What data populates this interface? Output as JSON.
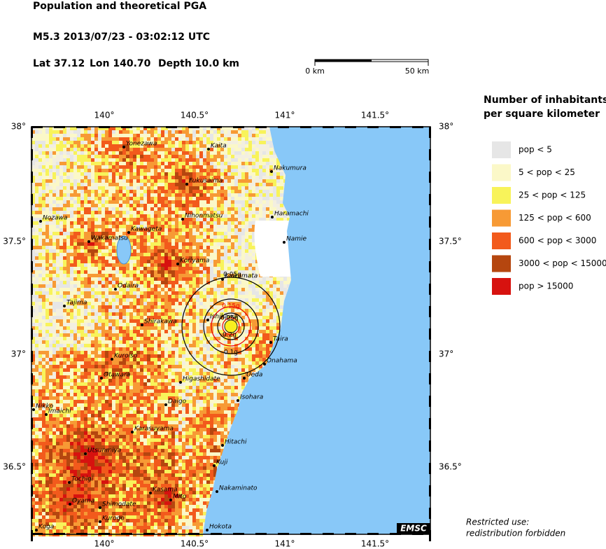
{
  "header": {
    "title": "Population and theoretical PGA",
    "event": "M5.3  2013/07/23 - 03:02:12 UTC",
    "lat": "Lat 37.12",
    "lon": "Lon 140.70",
    "depth": "Depth  10.0 km"
  },
  "scale_bar": {
    "start": "0 km",
    "end": "50 km"
  },
  "map": {
    "lon_ticks": [
      "140°",
      "140.5°",
      "141°",
      "141.5°"
    ],
    "lat_ticks": [
      "38°",
      "37.5°",
      "37°",
      "36.5°"
    ],
    "cities": [
      "Yonezawa",
      "Kaita",
      "Nakumura",
      "Fukusaima",
      "Nozawa",
      "Haramachi",
      "Nihonmatsu",
      "Kawageta",
      "Wakamatsu",
      "Namie",
      "Koriyama",
      "Kawamata",
      "Odaira",
      "Tajima",
      "Ishikawa",
      "Shirakawa",
      "Taira",
      "Onahama",
      "Kuroiso",
      "Ueda",
      "Otawara",
      "Higashidate",
      "Isohara",
      "Daigo",
      "Nikko",
      "Imaichi",
      "Karasuyama",
      "Hitachi",
      "Utsunmiya",
      "Kuji",
      "Tochigi",
      "Nakaminato",
      "Kasama",
      "Mito",
      "Oyama",
      "Shimodate",
      "Kurogo",
      "Koga",
      "Hokota"
    ],
    "pga_labels": [
      "0.05g",
      "0.15g",
      "0.25g",
      "0.2g",
      "0.1g"
    ],
    "badge": "EMSC"
  },
  "legend": {
    "title_lines": [
      "Number of inhabitants",
      "per square kilometer"
    ],
    "items": [
      {
        "label": "pop < 5",
        "color": "#e6e6e6"
      },
      {
        "label": "5 < pop < 25",
        "color": "#fbf8c8"
      },
      {
        "label": "25 < pop < 125",
        "color": "#f8f35a"
      },
      {
        "label": "125 < pop < 600",
        "color": "#f79a35"
      },
      {
        "label": "600 < pop < 3000",
        "color": "#f25a1c"
      },
      {
        "label": "3000 < pop < 15000",
        "color": "#b5460f"
      },
      {
        "label": "pop > 15000",
        "color": "#d7120f"
      }
    ]
  },
  "footer": {
    "lines": [
      "Restricted use:",
      "redistribution forbidden"
    ]
  }
}
